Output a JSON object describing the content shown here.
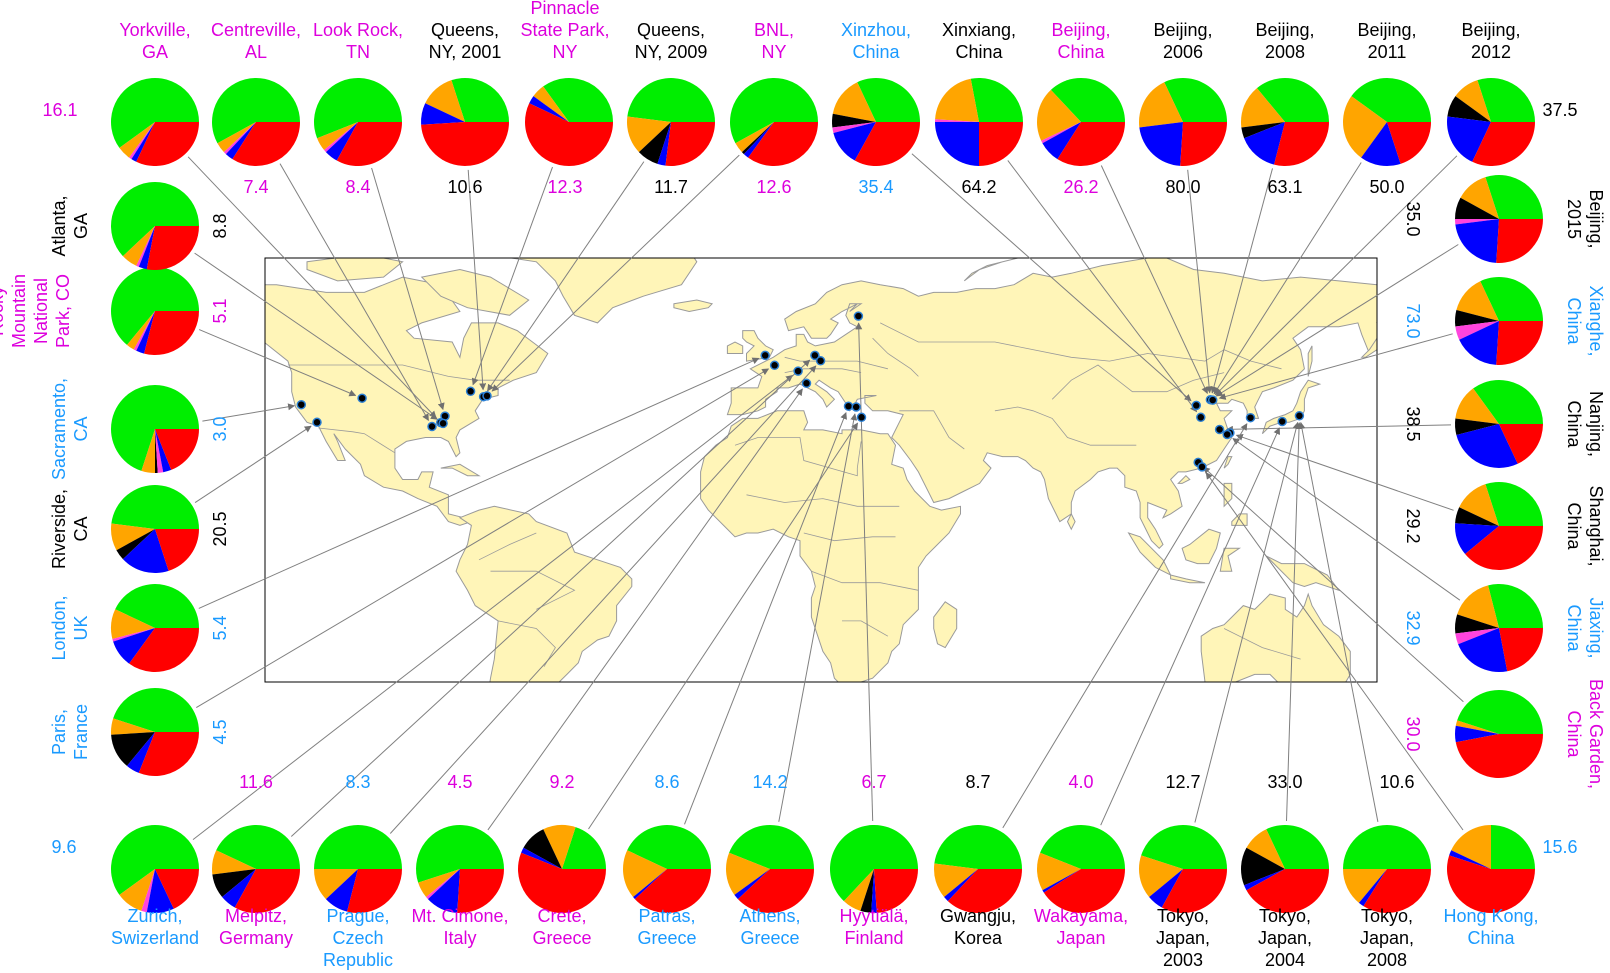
{
  "colors": {
    "green": "#00ee00",
    "red": "#ff0000",
    "blue": "#0000ff",
    "orange": "#ffa500",
    "black": "#000000",
    "magenta": "#ff44dd",
    "label_magenta": "#dd00dd",
    "label_blue": "#1a9aff",
    "label_black": "#000000",
    "land": "#fff5b8",
    "border": "#9a9a9a",
    "connector": "#808080"
  },
  "chart_data": {
    "type": "pie",
    "component_order": [
      "green",
      "orange",
      "black",
      "magenta",
      "blue",
      "red"
    ],
    "component_names": [],
    "sites": [
      {
        "id": "yorkville",
        "label": [
          "Yorkville,",
          "GA"
        ],
        "label_color": "label_magenta",
        "value": "16.1",
        "fractions": [
          0.6,
          0.05,
          0,
          0.01,
          0.02,
          0.32
        ],
        "map_lon": -85.0,
        "map_lat": 33.9
      },
      {
        "id": "centreville",
        "label": [
          "Centreville,",
          "AL"
        ],
        "label_color": "label_magenta",
        "value": "7.4",
        "fractions": [
          0.58,
          0.04,
          0,
          0.01,
          0.03,
          0.34
        ],
        "map_lon": -87.3,
        "map_lat": 32.9
      },
      {
        "id": "lookrock",
        "label": [
          "Look Rock,",
          "TN"
        ],
        "label_color": "label_magenta",
        "value": "8.4",
        "fractions": [
          0.56,
          0.05,
          0,
          0.01,
          0.05,
          0.33
        ],
        "map_lon": -83.9,
        "map_lat": 35.6
      },
      {
        "id": "queens2001",
        "label": [
          "Queens,",
          "NY, 2001"
        ],
        "label_color": "label_black",
        "value": "10.6",
        "fractions": [
          0.3,
          0.13,
          0,
          0,
          0.08,
          0.49
        ],
        "map_lon": -73.8,
        "map_lat": 40.7
      },
      {
        "id": "pinnacle",
        "label": [
          "Pinnacle",
          "State Park,",
          "NY"
        ],
        "label_color": "label_magenta",
        "value": "12.3",
        "fractions": [
          0.35,
          0.05,
          0,
          0,
          0.03,
          0.57
        ],
        "map_lon": -77.2,
        "map_lat": 42.1
      },
      {
        "id": "queens2009",
        "label": [
          "Queens,",
          "NY, 2009"
        ],
        "label_color": "label_black",
        "value": "11.7",
        "fractions": [
          0.48,
          0.14,
          0.08,
          0,
          0.03,
          0.27
        ],
        "map_lon": -73.8,
        "map_lat": 40.7
      },
      {
        "id": "bnl",
        "label": [
          "BNL,",
          "NY"
        ],
        "label_color": "label_magenta",
        "value": "12.6",
        "fractions": [
          0.58,
          0.04,
          0.01,
          0,
          0.02,
          0.35
        ],
        "map_lon": -72.9,
        "map_lat": 40.9
      },
      {
        "id": "xinzhou",
        "label": [
          "Xinzhou,",
          "China"
        ],
        "label_color": "label_blue",
        "value": "35.4",
        "fractions": [
          0.32,
          0.15,
          0.05,
          0.02,
          0.13,
          0.33
        ],
        "map_lon": 112.7,
        "map_lat": 38.4
      },
      {
        "id": "xinxiang",
        "label": [
          "Xinxiang,",
          "China"
        ],
        "label_color": "label_black",
        "value": "64.2",
        "fractions": [
          0.28,
          0.21,
          0,
          0.01,
          0.25,
          0.25
        ],
        "map_lon": 113.9,
        "map_lat": 35.3
      },
      {
        "id": "beijing_c",
        "label": [
          "Beijing,",
          "China"
        ],
        "label_color": "label_magenta",
        "value": "26.2",
        "fractions": [
          0.37,
          0.2,
          0,
          0.01,
          0.08,
          0.34
        ],
        "map_lon": 116.4,
        "map_lat": 39.9
      },
      {
        "id": "beijing2006",
        "label": [
          "Beijing,",
          "2006"
        ],
        "label_color": "label_black",
        "value": "80.0",
        "fractions": [
          0.32,
          0.2,
          0,
          0,
          0.22,
          0.26
        ],
        "map_lon": 116.4,
        "map_lat": 39.9
      },
      {
        "id": "beijing2008",
        "label": [
          "Beijing,",
          "2008"
        ],
        "label_color": "label_black",
        "value": "63.1",
        "fractions": [
          0.36,
          0.16,
          0.04,
          0,
          0.15,
          0.29
        ],
        "map_lon": 116.4,
        "map_lat": 39.9
      },
      {
        "id": "beijing2011",
        "label": [
          "Beijing,",
          "2011"
        ],
        "label_color": "label_black",
        "value": "50.0",
        "fractions": [
          0.4,
          0.25,
          0,
          0,
          0.15,
          0.2
        ],
        "map_lon": 116.4,
        "map_lat": 39.9
      },
      {
        "id": "beijing2012",
        "label": [
          "Beijing,",
          "2012"
        ],
        "label_color": "label_black",
        "value": "37.5",
        "fractions": [
          0.3,
          0.1,
          0.08,
          0,
          0.2,
          0.32
        ],
        "map_lon": 116.4,
        "map_lat": 39.9
      },
      {
        "id": "beijing2015",
        "label": [
          "Beijing,",
          "2015"
        ],
        "label_color": "label_black",
        "value": "35.0",
        "fractions": [
          0.3,
          0.12,
          0.08,
          0.02,
          0.22,
          0.26
        ],
        "map_lon": 116.4,
        "map_lat": 39.9
      },
      {
        "id": "xianghe",
        "label": [
          "Xianghe,",
          "China"
        ],
        "label_color": "label_blue",
        "value": "73.0",
        "fractions": [
          0.32,
          0.14,
          0.06,
          0.05,
          0.17,
          0.26
        ],
        "map_lon": 117.0,
        "map_lat": 39.8
      },
      {
        "id": "nanjing",
        "label": [
          "Nanjing,",
          "China"
        ],
        "label_color": "label_black",
        "value": "38.5",
        "fractions": [
          0.35,
          0.13,
          0.06,
          0,
          0.28,
          0.18
        ],
        "map_lon": 118.8,
        "map_lat": 32.1
      },
      {
        "id": "shanghai",
        "label": [
          "Shanghai,",
          "China"
        ],
        "label_color": "label_black",
        "value": "29.2",
        "fractions": [
          0.3,
          0.13,
          0.06,
          0,
          0.12,
          0.39
        ],
        "map_lon": 121.5,
        "map_lat": 31.2
      },
      {
        "id": "jiaxing",
        "label": [
          "Jiaxing,",
          "China"
        ],
        "label_color": "label_blue",
        "value": "32.9",
        "fractions": [
          0.29,
          0.16,
          0.07,
          0.04,
          0.22,
          0.22
        ],
        "map_lon": 120.8,
        "map_lat": 30.8
      },
      {
        "id": "backgarden",
        "label": [
          "Back Garden,",
          "China"
        ],
        "label_color": "label_magenta",
        "value": "30.0",
        "fractions": [
          0.45,
          0.02,
          0,
          0,
          0.06,
          0.47
        ],
        "map_lon": 113.2,
        "map_lat": 23.5
      },
      {
        "id": "riverside",
        "label": [
          "Riverside,",
          "CA"
        ],
        "label_color": "label_black",
        "value": "20.5",
        "fractions": [
          0.48,
          0.1,
          0.04,
          0,
          0.18,
          0.2
        ],
        "map_lon": -117.4,
        "map_lat": 34.0
      },
      {
        "id": "sacramento",
        "label": [
          "Sacramento,",
          "CA"
        ],
        "label_color": "label_blue",
        "value": "3.0",
        "fractions": [
          0.7,
          0.05,
          0.01,
          0.02,
          0.03,
          0.19
        ],
        "map_lon": -121.5,
        "map_lat": 38.6
      },
      {
        "id": "rocky",
        "label": [
          "Rocky",
          "Mountain",
          "National",
          "Park, CO"
        ],
        "label_color": "label_magenta",
        "value": "5.1",
        "fractions": [
          0.64,
          0.03,
          0,
          0.01,
          0.03,
          0.29
        ],
        "map_lon": -105.6,
        "map_lat": 40.3
      },
      {
        "id": "atlanta",
        "label": [
          "Atlanta,",
          "GA"
        ],
        "label_color": "label_black",
        "value": "8.8",
        "fractions": [
          0.62,
          0.06,
          0,
          0.01,
          0.03,
          0.28
        ],
        "map_lon": -84.4,
        "map_lat": 33.7
      },
      {
        "id": "london",
        "label": [
          "London,",
          "UK"
        ],
        "label_color": "label_blue",
        "value": "5.4",
        "fractions": [
          0.43,
          0.11,
          0,
          0.01,
          0.1,
          0.35
        ],
        "map_lon": -0.1,
        "map_lat": 51.5
      },
      {
        "id": "paris",
        "label": [
          "Paris,",
          "France"
        ],
        "label_color": "label_blue",
        "value": "4.5",
        "fractions": [
          0.45,
          0.06,
          0.13,
          0,
          0.05,
          0.31
        ],
        "map_lon": 2.35,
        "map_lat": 48.9
      },
      {
        "id": "zurich",
        "label": [
          "Zurich,",
          "Swizerland"
        ],
        "label_color": "label_blue",
        "value": "9.6",
        "fractions": [
          0.6,
          0.1,
          0,
          0.02,
          0.1,
          0.18
        ],
        "map_lon": 8.5,
        "map_lat": 47.4
      },
      {
        "id": "melpitz",
        "label": [
          "Melpitz,",
          "Germany"
        ],
        "label_color": "label_magenta",
        "value": "11.6",
        "fractions": [
          0.43,
          0.09,
          0.09,
          0,
          0.06,
          0.33
        ],
        "map_lon": 12.9,
        "map_lat": 51.5
      },
      {
        "id": "prague",
        "label": [
          "Prague,",
          "Czech",
          "Republic"
        ],
        "label_color": "label_blue",
        "value": "8.3",
        "fractions": [
          0.5,
          0.12,
          0,
          0,
          0.09,
          0.29
        ],
        "map_lon": 14.4,
        "map_lat": 50.1
      },
      {
        "id": "cimone",
        "label": [
          "Mt. Cimone,",
          "Italy"
        ],
        "label_color": "label_magenta",
        "value": "4.5",
        "fractions": [
          0.55,
          0.06,
          0,
          0.01,
          0.12,
          0.26
        ],
        "map_lon": 10.7,
        "map_lat": 44.2
      },
      {
        "id": "crete",
        "label": [
          "Crete,",
          "Greece"
        ],
        "label_color": "label_magenta",
        "value": "9.2",
        "fractions": [
          0.2,
          0.12,
          0.1,
          0,
          0.02,
          0.56
        ],
        "map_lon": 25.1,
        "map_lat": 35.3
      },
      {
        "id": "patras",
        "label": [
          "Patras,",
          "Greece"
        ],
        "label_color": "label_blue",
        "value": "8.6",
        "fractions": [
          0.43,
          0.18,
          0,
          0,
          0.01,
          0.38
        ],
        "map_lon": 21.7,
        "map_lat": 38.2
      },
      {
        "id": "athens",
        "label": [
          "Athens,",
          "Greece"
        ],
        "label_color": "label_blue",
        "value": "14.2",
        "fractions": [
          0.44,
          0.16,
          0,
          0,
          0.02,
          0.38
        ],
        "map_lon": 23.7,
        "map_lat": 38.0
      },
      {
        "id": "hyytiala",
        "label": [
          "Hyytiälä,",
          "Finland"
        ],
        "label_color": "label_magenta",
        "value": "6.7",
        "fractions": [
          0.63,
          0.07,
          0.04,
          0,
          0.02,
          0.24
        ],
        "map_lon": 24.3,
        "map_lat": 61.8
      },
      {
        "id": "gwangju",
        "label": [
          "Gwangju,",
          "Korea"
        ],
        "label_color": "label_black",
        "value": "8.7",
        "fractions": [
          0.48,
          0.13,
          0,
          0,
          0.02,
          0.37
        ],
        "map_lon": 126.9,
        "map_lat": 35.2
      },
      {
        "id": "wakayama",
        "label": [
          "Wakayama,",
          "Japan"
        ],
        "label_color": "label_magenta",
        "value": "4.0",
        "fractions": [
          0.44,
          0.14,
          0,
          0,
          0.01,
          0.41
        ],
        "map_lon": 135.2,
        "map_lat": 34.2
      },
      {
        "id": "tokyo2003",
        "label": [
          "Tokyo,",
          "Japan,",
          "2003"
        ],
        "label_color": "label_black",
        "value": "12.7",
        "fractions": [
          0.45,
          0.16,
          0,
          0,
          0.06,
          0.33
        ],
        "map_lon": 139.7,
        "map_lat": 35.7
      },
      {
        "id": "tokyo2004",
        "label": [
          "Tokyo,",
          "Japan,",
          "2004"
        ],
        "label_color": "label_black",
        "value": "33.0",
        "fractions": [
          0.32,
          0.1,
          0.14,
          0,
          0.02,
          0.42
        ],
        "map_lon": 139.7,
        "map_lat": 35.7
      },
      {
        "id": "tokyo2008",
        "label": [
          "Tokyo,",
          "Japan,",
          "2008"
        ],
        "label_color": "label_black",
        "value": "10.6",
        "fractions": [
          0.5,
          0.14,
          0,
          0,
          0.02,
          0.34
        ],
        "map_lon": 139.7,
        "map_lat": 35.7
      },
      {
        "id": "hongkong",
        "label": [
          "Hong Kong,",
          "China"
        ],
        "label_color": "label_blue",
        "value": "15.6",
        "fractions": [
          0.25,
          0.18,
          0,
          0,
          0.02,
          0.55
        ],
        "map_lon": 114.2,
        "map_lat": 22.3
      }
    ]
  }
}
